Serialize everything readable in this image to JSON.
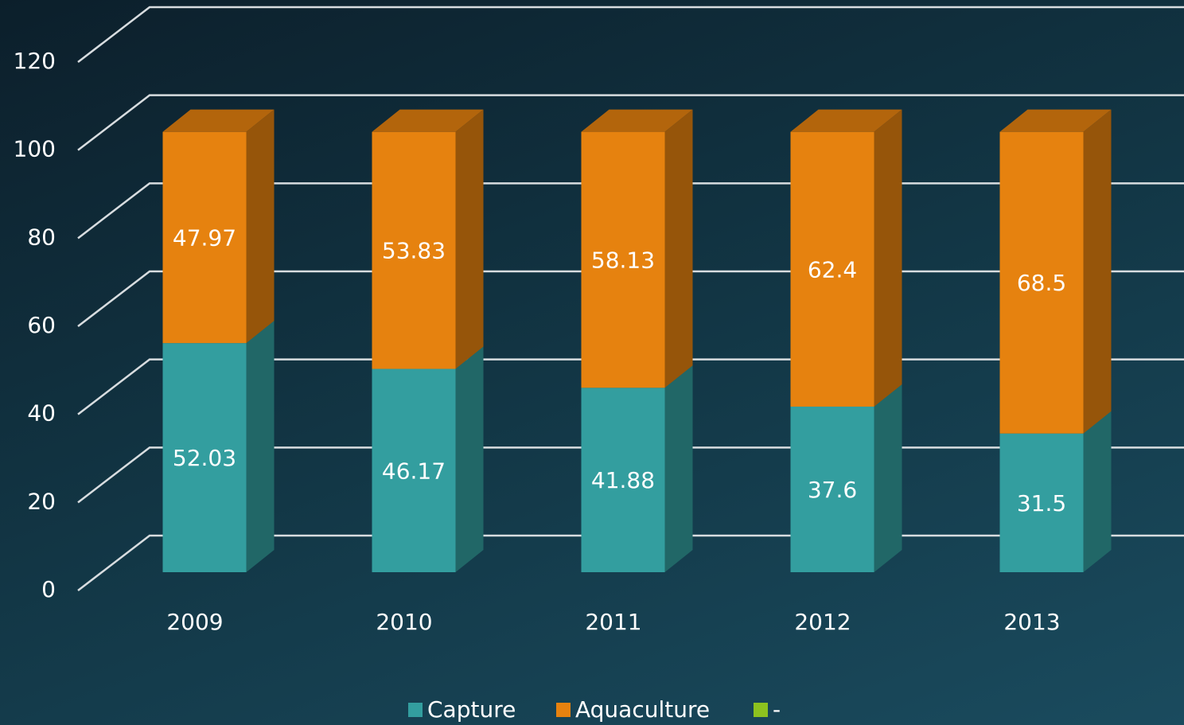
{
  "chart_data": {
    "type": "bar3d_stacked",
    "categories": [
      "2009",
      "2010",
      "2011",
      "2012",
      "2013"
    ],
    "series": [
      {
        "name": "Capture",
        "color": "#339e9f",
        "values": [
          52.03,
          46.17,
          41.88,
          37.6,
          31.5
        ]
      },
      {
        "name": "Aquaculture",
        "color": "#e6820f",
        "values": [
          47.97,
          53.83,
          58.13,
          62.4,
          68.5
        ]
      },
      {
        "name": "-",
        "color": "#8dc21f",
        "values": [
          null,
          null,
          null,
          null,
          null
        ]
      }
    ],
    "ylim": [
      0,
      120
    ],
    "yticks": [
      0,
      20,
      40,
      60,
      80,
      100,
      120
    ],
    "grid": true,
    "legend": "bottom"
  }
}
